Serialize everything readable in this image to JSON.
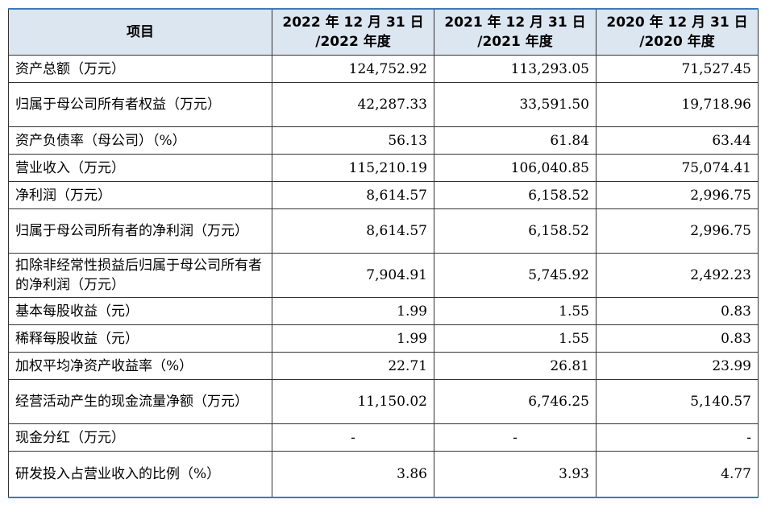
{
  "header": {
    "item": "项目",
    "col1_line1": "2022 年 12 月 31 日",
    "col1_line2": "/2022 年度",
    "col2_line1": "2021 年 12 月 31 日",
    "col2_line2": "/2021 年度",
    "col3_line1": "2020 年 12 月 31 日",
    "col3_line2": "/2020 年度"
  },
  "rows": [
    {
      "label": "资产总额（万元）",
      "v2022": "124,752.92",
      "v2021": "113,293.05",
      "v2020": "71,527.45"
    },
    {
      "label": "归属于母公司所有者权益（万元）",
      "v2022": "42,287.33",
      "v2021": "33,591.50",
      "v2020": "19,718.96"
    },
    {
      "label": "资产负债率（母公司）（%）",
      "v2022": "56.13",
      "v2021": "61.84",
      "v2020": "63.44"
    },
    {
      "label": "营业收入（万元）",
      "v2022": "115,210.19",
      "v2021": "106,040.85",
      "v2020": "75,074.41"
    },
    {
      "label": "净利润（万元）",
      "v2022": "8,614.57",
      "v2021": "6,158.52",
      "v2020": "2,996.75"
    },
    {
      "label": "归属于母公司所有者的净利润（万元）",
      "v2022": "8,614.57",
      "v2021": "6,158.52",
      "v2020": "2,996.75"
    },
    {
      "label": "扣除非经常性损益后归属于母公司所有者的净利润（万元）",
      "v2022": "7,904.91",
      "v2021": "5,745.92",
      "v2020": "2,492.23"
    },
    {
      "label": "基本每股收益（元）",
      "v2022": "1.99",
      "v2021": "1.55",
      "v2020": "0.83"
    },
    {
      "label": "稀释每股收益（元）",
      "v2022": "1.99",
      "v2021": "1.55",
      "v2020": "0.83"
    },
    {
      "label": "加权平均净资产收益率（%）",
      "v2022": "22.71",
      "v2021": "26.81",
      "v2020": "23.99"
    },
    {
      "label": "经营活动产生的现金流量净额（万元）",
      "v2022": "11,150.02",
      "v2021": "6,746.25",
      "v2020": "5,140.57"
    },
    {
      "label": "现金分红（万元）",
      "v2022": "-",
      "v2021": "-",
      "v2020": "-"
    },
    {
      "label": "研发投入占营业收入的比例（%）",
      "v2022": "3.86",
      "v2021": "3.93",
      "v2020": "4.77"
    }
  ]
}
